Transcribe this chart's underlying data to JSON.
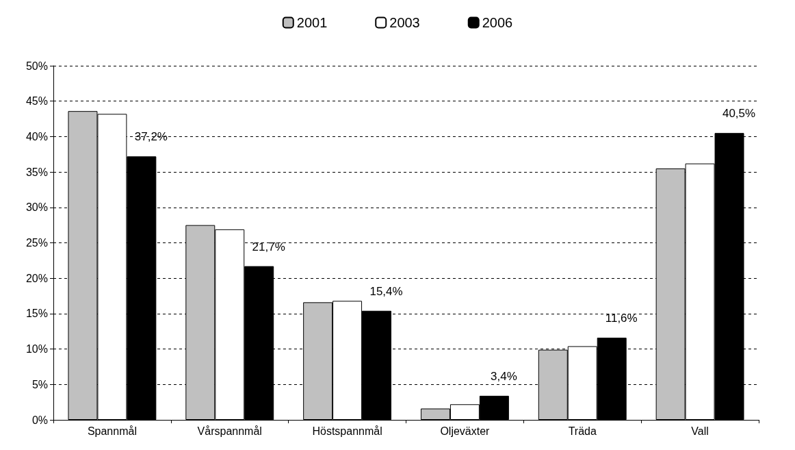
{
  "chart_data": {
    "type": "bar",
    "categories": [
      "Spannmål",
      "Vårspannmål",
      "Höstspannmål",
      "Oljeväxter",
      "Träda",
      "Vall"
    ],
    "series": [
      {
        "name": "2001",
        "color": "#c0c0c0",
        "values": [
          43.6,
          27.5,
          16.6,
          1.6,
          9.9,
          35.5
        ]
      },
      {
        "name": "2003",
        "color": "#ffffff",
        "values": [
          43.2,
          26.9,
          16.8,
          2.2,
          10.4,
          36.2
        ]
      },
      {
        "name": "2006",
        "color": "#000000",
        "values": [
          37.2,
          21.7,
          15.4,
          3.4,
          11.6,
          40.5
        ],
        "value_labels": [
          "37,2%",
          "21,7%",
          "15,4%",
          "3,4%",
          "11,6%",
          "40,5%"
        ]
      }
    ],
    "ylim": [
      0,
      50
    ],
    "yticks": [
      {
        "value": 0,
        "label": "0%"
      },
      {
        "value": 5,
        "label": "5%"
      },
      {
        "value": 10,
        "label": "10%"
      },
      {
        "value": 15,
        "label": "15%"
      },
      {
        "value": 20,
        "label": "20%"
      },
      {
        "value": 25,
        "label": "25%"
      },
      {
        "value": 30,
        "label": "30%"
      },
      {
        "value": 35,
        "label": "35%"
      },
      {
        "value": 40,
        "label": "40%"
      },
      {
        "value": 45,
        "label": "45%"
      },
      {
        "value": 50,
        "label": "50%"
      }
    ],
    "grid": "y",
    "legend": "top"
  }
}
